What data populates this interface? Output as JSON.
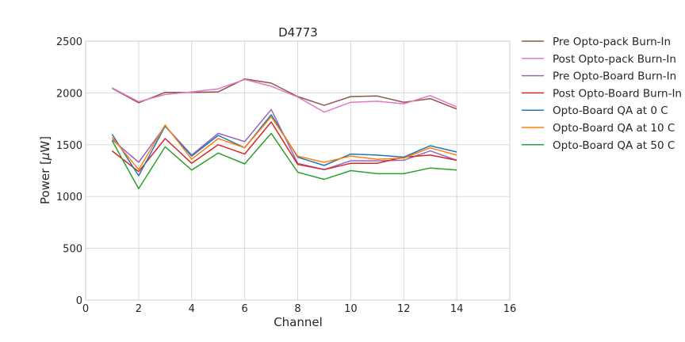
{
  "chart_data": {
    "type": "line",
    "title": "D4773",
    "xlabel": "Channel",
    "ylabel_prefix": "Power [",
    "ylabel_unit": "μ",
    "ylabel_suffix": "W]",
    "xlim": [
      0,
      16
    ],
    "ylim": [
      0,
      2500
    ],
    "xticks": [
      0,
      2,
      4,
      6,
      8,
      10,
      12,
      14,
      16
    ],
    "yticks": [
      0,
      500,
      1000,
      1500,
      2000,
      2500
    ],
    "grid": true,
    "legend_position": "outside-right-top",
    "x": [
      1,
      2,
      3,
      4,
      5,
      6,
      7,
      8,
      9,
      10,
      11,
      12,
      13,
      14
    ],
    "series": [
      {
        "name": "Pre Opto-pack Burn-In",
        "color": "#8c564b",
        "values": [
          2045,
          1905,
          2005,
          2005,
          2010,
          2135,
          2095,
          1965,
          1880,
          1965,
          1970,
          1910,
          1945,
          1845
        ]
      },
      {
        "name": "Post Opto-pack Burn-In",
        "color": "#e377c2",
        "values": [
          2050,
          1915,
          1985,
          2010,
          2040,
          2130,
          2065,
          1960,
          1815,
          1910,
          1920,
          1895,
          1975,
          1865
        ]
      },
      {
        "name": "Pre Opto-Board Burn-In",
        "color": "#9467bd",
        "values": [
          1550,
          1330,
          1680,
          1400,
          1610,
          1530,
          1840,
          1320,
          1260,
          1345,
          1345,
          1350,
          1440,
          1350
        ]
      },
      {
        "name": "Post Opto-Board Burn-In",
        "color": "#d62728",
        "values": [
          1440,
          1240,
          1560,
          1320,
          1500,
          1410,
          1720,
          1310,
          1260,
          1320,
          1320,
          1380,
          1400,
          1350
        ]
      },
      {
        "name": "Opto-Board QA at 0 C",
        "color": "#1f77b4",
        "values": [
          1600,
          1200,
          1680,
          1390,
          1590,
          1470,
          1790,
          1380,
          1300,
          1410,
          1400,
          1380,
          1490,
          1430
        ]
      },
      {
        "name": "Opto-Board QA at 10 C",
        "color": "#ff7f0e",
        "values": [
          1570,
          1260,
          1690,
          1360,
          1560,
          1470,
          1770,
          1390,
          1330,
          1390,
          1360,
          1370,
          1470,
          1400
        ]
      },
      {
        "name": "Opto-Board QA at 50 C",
        "color": "#2ca02c",
        "values": [
          1540,
          1075,
          1480,
          1255,
          1420,
          1315,
          1610,
          1235,
          1165,
          1250,
          1220,
          1220,
          1275,
          1255
        ]
      }
    ]
  }
}
